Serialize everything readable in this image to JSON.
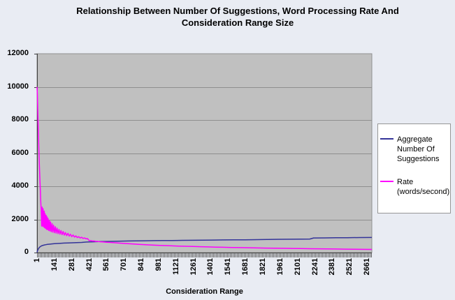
{
  "page": {
    "background": "#e9ecf3"
  },
  "chart_data": {
    "type": "line",
    "title": "Relationship Between Number Of Suggestions, Word Processing Rate And Consideration Range Size",
    "title_line1": "Relationship Between Number Of Suggestions, Word Processing Rate And",
    "title_line2": "Consideration Range Size",
    "xlabel": "Consideration Range",
    "ylabel": "",
    "xlim": [
      1,
      2700
    ],
    "ylim": [
      0,
      12000
    ],
    "x_ticks": [
      1,
      141,
      281,
      421,
      561,
      701,
      841,
      981,
      1121,
      1261,
      1401,
      1541,
      1681,
      1821,
      1961,
      2101,
      2241,
      2381,
      2521,
      2661
    ],
    "y_ticks": [
      0,
      2000,
      4000,
      6000,
      8000,
      10000,
      12000
    ],
    "grid": "horizontal-major",
    "legend_position": "right",
    "plot_background": "#c0c0c0",
    "gridline_color": "#8f8f8f",
    "axis_color": "#404040",
    "series": [
      {
        "name": "Aggregate Number Of Suggestions",
        "color": "#333399",
        "points": [
          [
            1,
            10
          ],
          [
            4,
            90
          ],
          [
            8,
            170
          ],
          [
            12,
            230
          ],
          [
            16,
            275
          ],
          [
            20,
            310
          ],
          [
            25,
            345
          ],
          [
            30,
            372
          ],
          [
            36,
            398
          ],
          [
            43,
            420
          ],
          [
            50,
            438
          ],
          [
            60,
            458
          ],
          [
            72,
            476
          ],
          [
            85,
            492
          ],
          [
            100,
            507
          ],
          [
            120,
            523
          ],
          [
            140,
            536
          ],
          [
            165,
            549
          ],
          [
            190,
            560
          ],
          [
            220,
            571
          ],
          [
            250,
            580
          ],
          [
            285,
            590
          ],
          [
            320,
            600
          ],
          [
            360,
            612
          ],
          [
            400,
            634
          ],
          [
            450,
            650
          ],
          [
            500,
            660
          ],
          [
            560,
            668
          ],
          [
            620,
            680
          ],
          [
            680,
            690
          ],
          [
            740,
            698
          ],
          [
            800,
            705
          ],
          [
            870,
            712
          ],
          [
            940,
            718
          ],
          [
            1010,
            724
          ],
          [
            1090,
            730
          ],
          [
            1170,
            736
          ],
          [
            1250,
            742
          ],
          [
            1330,
            748
          ],
          [
            1410,
            754
          ],
          [
            1500,
            760
          ],
          [
            1590,
            766
          ],
          [
            1680,
            772
          ],
          [
            1770,
            778
          ],
          [
            1860,
            790
          ],
          [
            1950,
            800
          ],
          [
            2040,
            806
          ],
          [
            2130,
            812
          ],
          [
            2200,
            818
          ],
          [
            2230,
            880
          ],
          [
            2320,
            886
          ],
          [
            2410,
            892
          ],
          [
            2500,
            898
          ],
          [
            2600,
            904
          ],
          [
            2700,
            910
          ]
        ]
      },
      {
        "name": "Rate (words/second)",
        "color": "#FF00FF",
        "points": [
          [
            1,
            10000
          ],
          [
            4,
            9500
          ],
          [
            8,
            8300
          ],
          [
            12,
            7100
          ],
          [
            16,
            6100
          ],
          [
            20,
            5200
          ],
          [
            24,
            4400
          ],
          [
            28,
            3700
          ],
          [
            31,
            3100
          ],
          [
            34,
            2600
          ],
          [
            36,
            2250
          ],
          [
            38,
            1600
          ],
          [
            40,
            2000
          ],
          [
            42,
            2750
          ],
          [
            44,
            1600
          ],
          [
            47,
            2100
          ],
          [
            50,
            2650
          ],
          [
            53,
            1550
          ],
          [
            56,
            2050
          ],
          [
            59,
            2500
          ],
          [
            62,
            1500
          ],
          [
            66,
            2350
          ],
          [
            70,
            1450
          ],
          [
            74,
            2250
          ],
          [
            78,
            1400
          ],
          [
            82,
            2150
          ],
          [
            86,
            1380
          ],
          [
            90,
            2050
          ],
          [
            95,
            1330
          ],
          [
            100,
            1950
          ],
          [
            105,
            1300
          ],
          [
            110,
            1850
          ],
          [
            116,
            1260
          ],
          [
            122,
            1750
          ],
          [
            128,
            1230
          ],
          [
            134,
            1650
          ],
          [
            141,
            1200
          ],
          [
            148,
            1560
          ],
          [
            155,
            1170
          ],
          [
            162,
            1480
          ],
          [
            170,
            1140
          ],
          [
            178,
            1400
          ],
          [
            186,
            1110
          ],
          [
            194,
            1330
          ],
          [
            203,
            1080
          ],
          [
            212,
            1270
          ],
          [
            221,
            1050
          ],
          [
            230,
            1210
          ],
          [
            240,
            1020
          ],
          [
            250,
            1160
          ],
          [
            260,
            990
          ],
          [
            270,
            1110
          ],
          [
            281,
            960
          ],
          [
            292,
            1060
          ],
          [
            303,
            930
          ],
          [
            314,
            1010
          ],
          [
            325,
            900
          ],
          [
            336,
            965
          ],
          [
            348,
            875
          ],
          [
            360,
            925
          ],
          [
            372,
            850
          ],
          [
            384,
            885
          ],
          [
            396,
            825
          ],
          [
            408,
            845
          ],
          [
            421,
            720
          ],
          [
            434,
            730
          ],
          [
            447,
            695
          ],
          [
            460,
            700
          ],
          [
            474,
            675
          ],
          [
            488,
            672
          ],
          [
            502,
            655
          ],
          [
            516,
            648
          ],
          [
            530,
            640
          ],
          [
            545,
            632
          ],
          [
            561,
            625
          ],
          [
            580,
            615
          ],
          [
            600,
            605
          ],
          [
            625,
            592
          ],
          [
            650,
            580
          ],
          [
            680,
            563
          ],
          [
            710,
            547
          ],
          [
            745,
            530
          ],
          [
            780,
            513
          ],
          [
            820,
            496
          ],
          [
            860,
            480
          ],
          [
            900,
            464
          ],
          [
            945,
            448
          ],
          [
            990,
            434
          ],
          [
            1040,
            419
          ],
          [
            1090,
            405
          ],
          [
            1140,
            392
          ],
          [
            1200,
            378
          ],
          [
            1260,
            365
          ],
          [
            1320,
            352
          ],
          [
            1380,
            340
          ],
          [
            1440,
            330
          ],
          [
            1500,
            320
          ],
          [
            1570,
            309
          ],
          [
            1640,
            299
          ],
          [
            1710,
            289
          ],
          [
            1780,
            280
          ],
          [
            1850,
            271
          ],
          [
            1920,
            263
          ],
          [
            1990,
            255
          ],
          [
            2060,
            247
          ],
          [
            2130,
            240
          ],
          [
            2200,
            233
          ],
          [
            2270,
            226
          ],
          [
            2340,
            219
          ],
          [
            2410,
            213
          ],
          [
            2480,
            207
          ],
          [
            2550,
            201
          ],
          [
            2620,
            195
          ],
          [
            2700,
            190
          ]
        ]
      }
    ]
  }
}
